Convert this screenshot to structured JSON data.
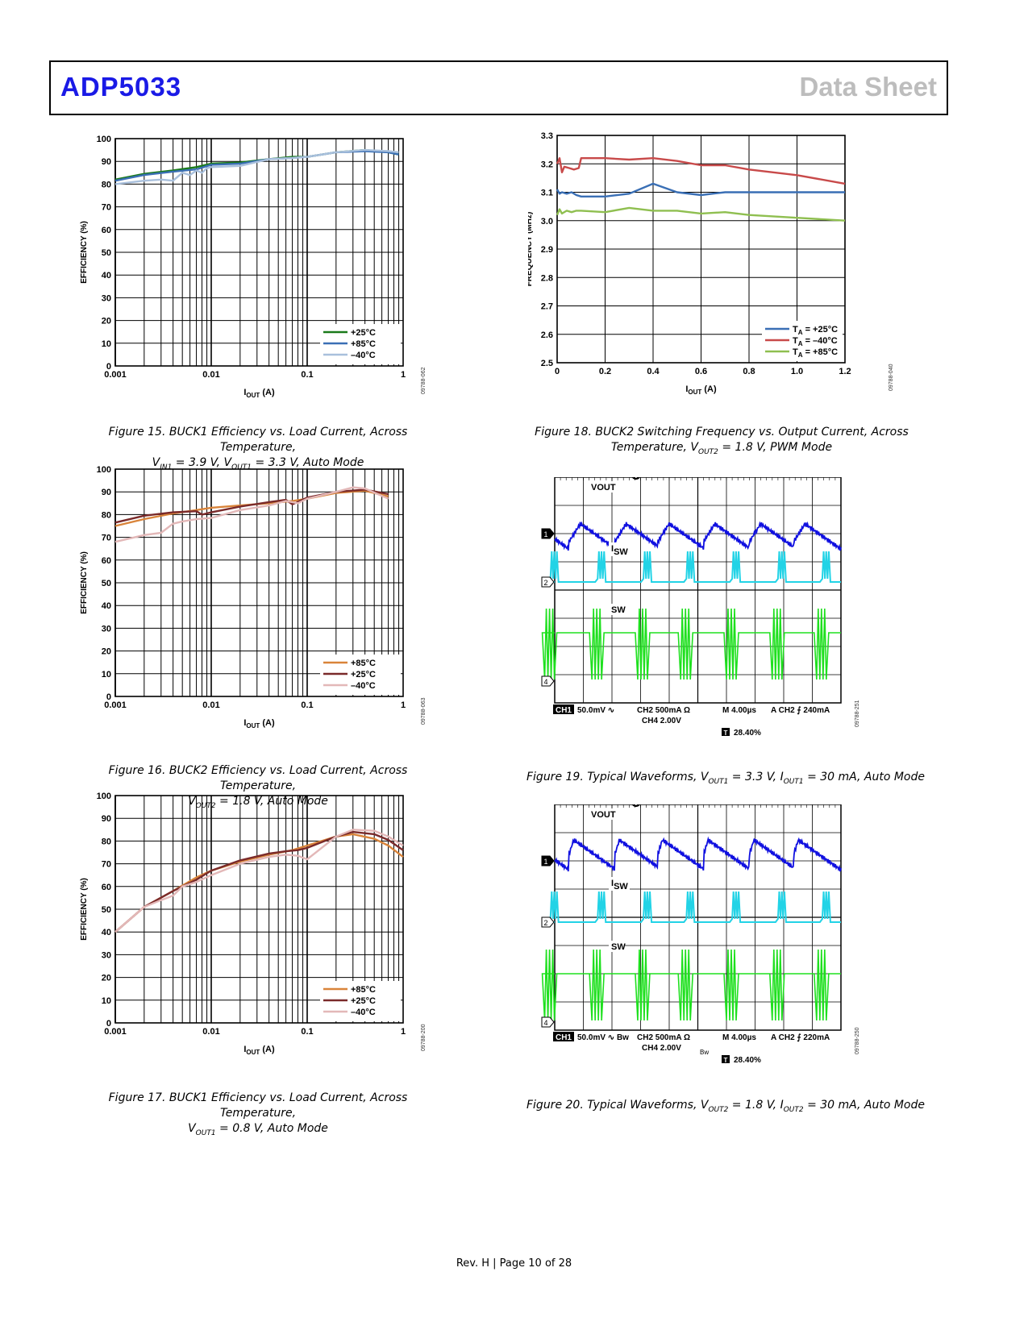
{
  "header": {
    "part_number": "ADP5033",
    "doc_type": "Data Sheet"
  },
  "footer": {
    "text": "Rev. H | Page 10 of 28"
  },
  "figures": {
    "fig15": {
      "caption_pre": "Figure 15. BUCK1 Efficiency vs. Load Current, Across Temperature,",
      "caption_line2": "V",
      "sub_a": "IN1",
      "mid_a": " = 3.9 V, V",
      "sub_b": "OUT1",
      "mid_b": " = 3.3 V, Auto Mode",
      "code": "09788-062"
    },
    "fig16": {
      "caption_pre": "Figure 16. BUCK2 Efficiency vs. Load Current, Across Temperature,",
      "caption_line2": "V",
      "sub_a": "OUT2",
      "mid_a": " = 1.8 V, Auto Mode",
      "code": "09788-063"
    },
    "fig17": {
      "caption_pre": "Figure 17. BUCK1 Efficiency vs. Load Current, Across Temperature,",
      "caption_line2": "V",
      "sub_a": "OUT1",
      "mid_a": " = 0.8 V, Auto Mode",
      "code": "09788-200"
    },
    "fig18": {
      "caption_pre": "Figure 18. BUCK2 Switching Frequency vs. Output Current, Across",
      "caption_line2": "Temperature, V",
      "sub_a": "OUT2",
      "mid_a": " = 1.8 V, PWM Mode",
      "code": "09788-040"
    },
    "fig19": {
      "caption_pre": "Figure 19. Typical Waveforms, V",
      "sub_a": "OUT1",
      "mid_a": " = 3.3 V, I",
      "sub_b": "OUT1",
      "mid_b": " = 30 mA, Auto Mode",
      "code": "09788-251"
    },
    "fig20": {
      "caption_pre": "Figure 20. Typical Waveforms, V",
      "sub_a": "OUT2",
      "mid_a": " = 1.8 V, I",
      "sub_b": "OUT2",
      "mid_b": " = 30 mA, Auto Mode",
      "code": "09788-250"
    }
  },
  "scope19": {
    "labels": {
      "vout": "VOUT",
      "isw_main": "I",
      "isw_sub": "SW",
      "sw": "SW"
    },
    "channels": [
      "1",
      "2",
      "4"
    ],
    "trigger_marker": "T",
    "status_line1": [
      "CH1",
      "50.0mV ∿",
      "CH2 500mA Ω",
      "M 4.00µs",
      "A CH2 ⨍ 240mA"
    ],
    "status_line2": "CH4 2.00V",
    "trigger_pos": "28.40%",
    "colors": {
      "ch1": "#1010e0",
      "ch2": "#22d3e6",
      "ch4": "#1ee01e"
    }
  },
  "scope20": {
    "labels": {
      "vout": "VOUT",
      "isw_main": "I",
      "isw_sub": "SW",
      "sw": "SW"
    },
    "channels": [
      "1",
      "2",
      "4"
    ],
    "trigger_marker": "T",
    "status_line1": [
      "CH1",
      "50.0mV ∿ Bw",
      "CH2 500mA Ω",
      "M 4.00µs",
      "A CH2 ⨍ 220mA"
    ],
    "status_line2": "CH4 2.00V",
    "status_bw": "Bw",
    "trigger_pos": "28.40%",
    "colors": {
      "ch1": "#1010e0",
      "ch2": "#22d3e6",
      "ch4": "#1ee01e"
    }
  },
  "chart_data": [
    {
      "id": "fig15",
      "type": "line",
      "xscale": "log",
      "xlabel": "I",
      "xlabel_sub": "OUT",
      "xlabel_unit": " (A)",
      "ylabel": "EFFICIENCY (%)",
      "xlim": [
        0.001,
        1
      ],
      "ylim": [
        0,
        100
      ],
      "xticks": [
        "0.001",
        "0.01",
        "0.1",
        "1"
      ],
      "yticks": [
        "0",
        "10",
        "20",
        "30",
        "40",
        "50",
        "60",
        "70",
        "80",
        "90",
        "100"
      ],
      "legend": "bottom-right",
      "series": [
        {
          "name": "+25°C",
          "color": "#1a7a1a",
          "x": [
            0.001,
            0.002,
            0.004,
            0.007,
            0.01,
            0.02,
            0.04,
            0.07,
            0.1,
            0.2,
            0.4,
            0.7,
            0.9
          ],
          "y": [
            82,
            84.5,
            86,
            87.5,
            89,
            89.5,
            91,
            92,
            92,
            94,
            95,
            94,
            93
          ]
        },
        {
          "name": "+85°C",
          "color": "#3a6fb5",
          "x": [
            0.001,
            0.002,
            0.004,
            0.007,
            0.01,
            0.02,
            0.04,
            0.07,
            0.1,
            0.2,
            0.4,
            0.7,
            0.9
          ],
          "y": [
            81.5,
            84,
            85.5,
            86.5,
            88.5,
            89,
            91,
            91.5,
            92,
            94,
            94.5,
            94,
            93
          ]
        },
        {
          "name": "–40°C",
          "color": "#a9c0dc",
          "x": [
            0.001,
            0.002,
            0.003,
            0.004,
            0.005,
            0.006,
            0.007,
            0.008,
            0.009,
            0.01,
            0.02,
            0.04,
            0.07,
            0.1,
            0.2,
            0.4,
            0.7,
            0.9
          ],
          "y": [
            80,
            81.5,
            82,
            81.5,
            85,
            84,
            86,
            85,
            87,
            87.5,
            88,
            91,
            91.5,
            92,
            94,
            95,
            94.5,
            94
          ]
        }
      ]
    },
    {
      "id": "fig16",
      "type": "line",
      "xscale": "log",
      "xlabel": "I",
      "xlabel_sub": "OUT",
      "xlabel_unit": " (A)",
      "ylabel": "EFFICIENCY (%)",
      "xlim": [
        0.001,
        1
      ],
      "ylim": [
        0,
        100
      ],
      "xticks": [
        "0.001",
        "0.01",
        "0.1",
        "1"
      ],
      "yticks": [
        "0",
        "10",
        "20",
        "30",
        "40",
        "50",
        "60",
        "70",
        "80",
        "90",
        "100"
      ],
      "legend": "bottom-right",
      "series": [
        {
          "name": "+85°C",
          "color": "#d9843a",
          "x": [
            0.001,
            0.002,
            0.004,
            0.007,
            0.01,
            0.02,
            0.04,
            0.07,
            0.1,
            0.2,
            0.4,
            0.7
          ],
          "y": [
            75,
            78,
            80.5,
            82,
            83,
            84,
            85,
            86,
            87,
            89.5,
            90.5,
            88
          ]
        },
        {
          "name": "+25°C",
          "color": "#7a2a2a",
          "x": [
            0.001,
            0.002,
            0.004,
            0.007,
            0.008,
            0.01,
            0.02,
            0.04,
            0.06,
            0.07,
            0.1,
            0.2,
            0.4,
            0.7
          ],
          "y": [
            76.5,
            79.5,
            81,
            81.5,
            80,
            81,
            83.5,
            85.5,
            86.5,
            84.5,
            87.5,
            90,
            91,
            89
          ]
        },
        {
          "name": "–40°C",
          "color": "#e3b8b8",
          "x": [
            0.001,
            0.002,
            0.003,
            0.004,
            0.005,
            0.007,
            0.01,
            0.02,
            0.04,
            0.06,
            0.08,
            0.1,
            0.2,
            0.3,
            0.4,
            0.7
          ],
          "y": [
            68,
            71,
            72,
            76,
            77,
            78,
            78.5,
            82,
            84,
            86,
            85,
            87,
            90,
            92,
            91.5,
            87
          ]
        }
      ]
    },
    {
      "id": "fig17",
      "type": "line",
      "xscale": "log",
      "xlabel": "I",
      "xlabel_sub": "OUT",
      "xlabel_unit": " (A)",
      "ylabel": "EFFICIENCY (%)",
      "xlim": [
        0.001,
        1
      ],
      "ylim": [
        0,
        100
      ],
      "xticks": [
        "0.001",
        "0.01",
        "0.1",
        "1"
      ],
      "yticks": [
        "0",
        "10",
        "20",
        "30",
        "40",
        "50",
        "60",
        "70",
        "80",
        "90",
        "100"
      ],
      "legend": "bottom-right",
      "series": [
        {
          "name": "+85°C",
          "color": "#d9843a",
          "x": [
            0.001,
            0.002,
            0.004,
            0.007,
            0.01,
            0.02,
            0.04,
            0.07,
            0.1,
            0.2,
            0.3,
            0.5,
            0.7,
            1
          ],
          "y": [
            40,
            51,
            58,
            64,
            67,
            71,
            74,
            76,
            78,
            82,
            83,
            81,
            78,
            73
          ]
        },
        {
          "name": "+25°C",
          "color": "#7a2a2a",
          "x": [
            0.001,
            0.002,
            0.004,
            0.007,
            0.01,
            0.02,
            0.04,
            0.06,
            0.08,
            0.1,
            0.2,
            0.3,
            0.5,
            0.7,
            1
          ],
          "y": [
            40,
            51,
            58,
            63,
            67,
            71.5,
            74.5,
            75.5,
            76,
            77,
            82,
            84,
            83,
            80.5,
            76
          ]
        },
        {
          "name": "–40°C",
          "color": "#e3b8b8",
          "x": [
            0.001,
            0.002,
            0.003,
            0.004,
            0.005,
            0.007,
            0.01,
            0.02,
            0.04,
            0.06,
            0.08,
            0.1,
            0.2,
            0.3,
            0.5,
            0.7,
            1
          ],
          "y": [
            40,
            51,
            54,
            56,
            60,
            62,
            65,
            70,
            73,
            74,
            73.5,
            72,
            82,
            85,
            84.5,
            82,
            78
          ]
        }
      ]
    },
    {
      "id": "fig18",
      "type": "line",
      "xscale": "linear",
      "xlabel": "I",
      "xlabel_sub": "OUT",
      "xlabel_unit": " (A)",
      "ylabel": "FREQUENCY (MHz)",
      "xlim": [
        0,
        1.2
      ],
      "ylim": [
        2.5,
        3.3
      ],
      "xticks": [
        "0",
        "0.2",
        "0.4",
        "0.6",
        "0.8",
        "1.0",
        "1.2"
      ],
      "yticks": [
        "2.5",
        "2.6",
        "2.7",
        "2.8",
        "2.9",
        "3.0",
        "3.1",
        "3.2",
        "3.3"
      ],
      "legend": "bottom-right",
      "series": [
        {
          "name": "+25°C",
          "legend_main": "T",
          "legend_sub": "A",
          "legend_rest": " = +25°C",
          "color": "#3a6fb5",
          "x": [
            0,
            0.01,
            0.02,
            0.04,
            0.06,
            0.08,
            0.1,
            0.2,
            0.3,
            0.4,
            0.5,
            0.6,
            0.7,
            0.8,
            1.0,
            1.2
          ],
          "y": [
            3.11,
            3.095,
            3.1,
            3.095,
            3.1,
            3.09,
            3.085,
            3.085,
            3.095,
            3.13,
            3.1,
            3.09,
            3.1,
            3.1,
            3.1,
            3.1
          ]
        },
        {
          "name": "–40°C",
          "legend_main": "T",
          "legend_sub": "A",
          "legend_rest": " = –40°C",
          "color": "#c84a4a",
          "x": [
            0,
            0.01,
            0.02,
            0.03,
            0.05,
            0.07,
            0.09,
            0.1,
            0.2,
            0.3,
            0.4,
            0.5,
            0.6,
            0.7,
            0.8,
            1.0,
            1.2
          ],
          "y": [
            3.2,
            3.22,
            3.17,
            3.19,
            3.185,
            3.18,
            3.185,
            3.22,
            3.22,
            3.215,
            3.22,
            3.21,
            3.195,
            3.195,
            3.18,
            3.16,
            3.13
          ]
        },
        {
          "name": "+85°C",
          "legend_main": "T",
          "legend_sub": "A",
          "legend_rest": " = +85°C",
          "color": "#8fbf50",
          "x": [
            0,
            0.01,
            0.02,
            0.04,
            0.06,
            0.08,
            0.1,
            0.2,
            0.3,
            0.4,
            0.5,
            0.6,
            0.7,
            0.8,
            1.0,
            1.2
          ],
          "y": [
            3.02,
            3.04,
            3.025,
            3.035,
            3.03,
            3.035,
            3.035,
            3.03,
            3.045,
            3.035,
            3.035,
            3.025,
            3.03,
            3.02,
            3.01,
            3.0
          ]
        }
      ]
    }
  ]
}
